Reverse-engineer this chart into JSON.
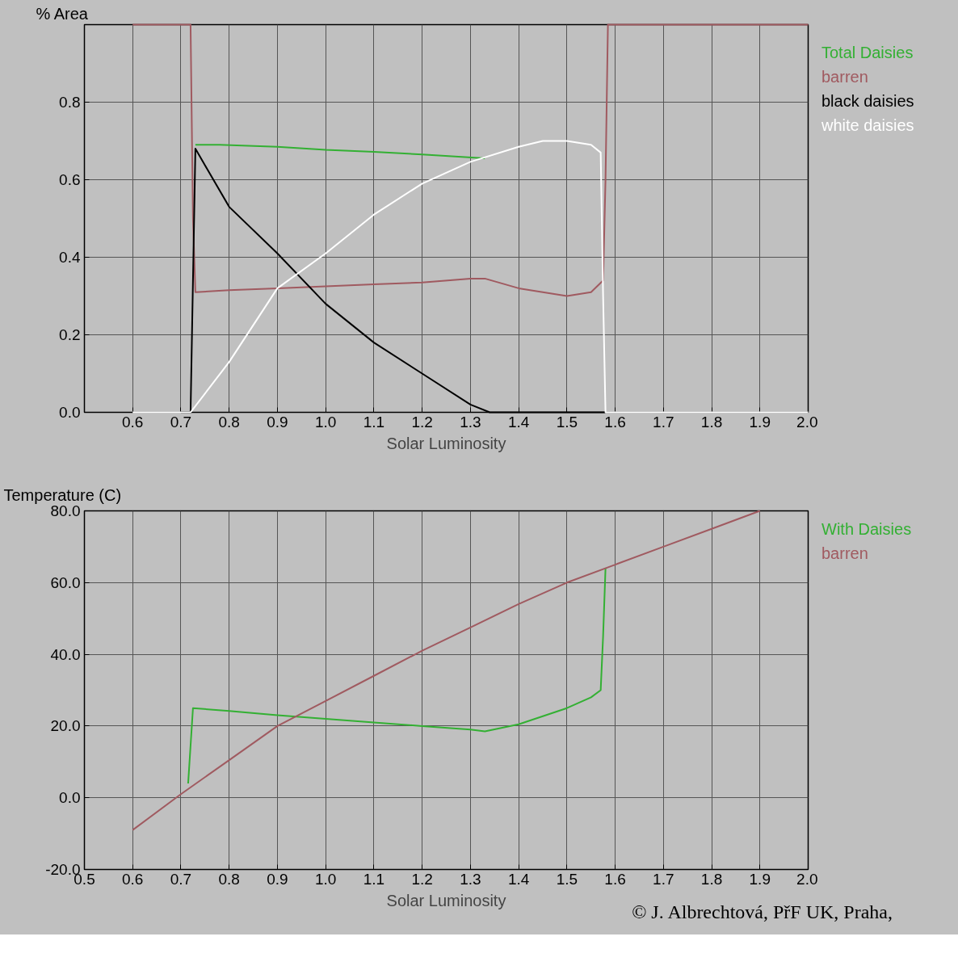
{
  "chart_data": [
    {
      "type": "line",
      "ylabel": "% Area",
      "xlabel": "Solar Luminosity",
      "xlim": [
        0.5,
        2.0
      ],
      "ylim": [
        0,
        1.0
      ],
      "xticks": [
        {
          "value": 0.6,
          "label": "0.6"
        },
        {
          "value": 0.7,
          "label": "0.7"
        },
        {
          "value": 0.8,
          "label": "0.8"
        },
        {
          "value": 0.9,
          "label": "0.9"
        },
        {
          "value": 1.0,
          "label": "1.0"
        },
        {
          "value": 1.1,
          "label": "1.1"
        },
        {
          "value": 1.2,
          "label": "1.2"
        },
        {
          "value": 1.3,
          "label": "1.3"
        },
        {
          "value": 1.4,
          "label": "1.4"
        },
        {
          "value": 1.5,
          "label": "1.5"
        },
        {
          "value": 1.6,
          "label": "1.6"
        },
        {
          "value": 1.7,
          "label": "1.7"
        },
        {
          "value": 1.8,
          "label": "1.8"
        },
        {
          "value": 1.9,
          "label": "1.9"
        },
        {
          "value": 2.0,
          "label": "2.0"
        }
      ],
      "yticks": [
        {
          "value": 0,
          "label": "0.0"
        },
        {
          "value": 0.2,
          "label": "0.2"
        },
        {
          "value": 0.4,
          "label": "0.4"
        },
        {
          "value": 0.6,
          "label": "0.6"
        },
        {
          "value": 0.8,
          "label": "0.8"
        },
        {
          "value": 1.0,
          "label": null
        }
      ],
      "grid": true,
      "marker": "none",
      "line_style": "solid",
      "series": [
        {
          "name": "Total Daisies",
          "color": "#33b033",
          "x": [
            0.73,
            0.78,
            0.9,
            1.0,
            1.1,
            1.2,
            1.33
          ],
          "values": [
            0.69,
            0.69,
            0.685,
            0.677,
            0.672,
            0.665,
            0.655
          ]
        },
        {
          "name": "barren",
          "color": "#a05a60",
          "x": [
            0.6,
            0.72,
            0.725,
            0.73,
            0.8,
            0.9,
            1.0,
            1.1,
            1.2,
            1.3,
            1.33,
            1.4,
            1.5,
            1.55,
            1.575,
            1.58,
            1.585,
            2.0
          ],
          "values": [
            1.0,
            1.0,
            0.5,
            0.31,
            0.315,
            0.32,
            0.325,
            0.33,
            0.335,
            0.345,
            0.345,
            0.32,
            0.3,
            0.31,
            0.34,
            0.6,
            1.0,
            1.0
          ]
        },
        {
          "name": "black daisies",
          "color": "#000000",
          "x": [
            0.7,
            0.72,
            0.73,
            0.8,
            0.9,
            1.0,
            1.1,
            1.2,
            1.3,
            1.34,
            1.58
          ],
          "values": [
            0,
            0,
            0.68,
            0.53,
            0.41,
            0.28,
            0.18,
            0.1,
            0.02,
            0,
            0
          ]
        },
        {
          "name": "white daisies",
          "color": "#ffffff",
          "x": [
            0.6,
            0.72,
            0.8,
            0.9,
            1.0,
            1.1,
            1.2,
            1.3,
            1.4,
            1.45,
            1.5,
            1.55,
            1.57,
            1.575,
            1.58,
            2.0
          ],
          "values": [
            0,
            0,
            0.13,
            0.32,
            0.41,
            0.51,
            0.59,
            0.646,
            0.685,
            0.7,
            0.7,
            0.69,
            0.67,
            0.3,
            0,
            0
          ]
        }
      ]
    },
    {
      "type": "line",
      "ylabel": "Temperature (C)",
      "xlabel": "Solar Luminosity",
      "xlim": [
        0.5,
        2.0
      ],
      "ylim": [
        -20,
        80
      ],
      "xticks": [
        {
          "value": 0.5,
          "label": "0.5"
        },
        {
          "value": 0.6,
          "label": "0.6"
        },
        {
          "value": 0.7,
          "label": "0.7"
        },
        {
          "value": 0.8,
          "label": "0.8"
        },
        {
          "value": 0.9,
          "label": "0.9"
        },
        {
          "value": 1.0,
          "label": "1.0"
        },
        {
          "value": 1.1,
          "label": "1.1"
        },
        {
          "value": 1.2,
          "label": "1.2"
        },
        {
          "value": 1.3,
          "label": "1.3"
        },
        {
          "value": 1.4,
          "label": "1.4"
        },
        {
          "value": 1.5,
          "label": "1.5"
        },
        {
          "value": 1.6,
          "label": "1.6"
        },
        {
          "value": 1.7,
          "label": "1.7"
        },
        {
          "value": 1.8,
          "label": "1.8"
        },
        {
          "value": 1.9,
          "label": "1.9"
        },
        {
          "value": 2.0,
          "label": "2.0"
        }
      ],
      "yticks": [
        {
          "value": -20,
          "label": "-20.0"
        },
        {
          "value": 0,
          "label": "0.0"
        },
        {
          "value": 20,
          "label": "20.0"
        },
        {
          "value": 40,
          "label": "40.0"
        },
        {
          "value": 60,
          "label": "60.0"
        },
        {
          "value": 80,
          "label": "80.0"
        }
      ],
      "grid": true,
      "marker": "none",
      "line_style": "solid",
      "annotations": [
        "© J. Albrechtová, PřF UK, Praha,"
      ],
      "series": [
        {
          "name": "With Daisies",
          "color": "#33b033",
          "x": [
            0.715,
            0.725,
            0.8,
            0.9,
            1.0,
            1.1,
            1.2,
            1.3,
            1.33,
            1.4,
            1.5,
            1.55,
            1.57,
            1.575,
            1.58
          ],
          "values": [
            4,
            25,
            24.2,
            23,
            22,
            21,
            20,
            19,
            18.5,
            20.5,
            25,
            28,
            30,
            45,
            64
          ]
        },
        {
          "name": "barren",
          "color": "#a05a60",
          "x": [
            0.6,
            0.7,
            0.8,
            0.9,
            1.0,
            1.1,
            1.2,
            1.3,
            1.4,
            1.5,
            1.6,
            1.7,
            1.8,
            1.9
          ],
          "values": [
            -9,
            1,
            10.5,
            20,
            27,
            34,
            41,
            47.5,
            54,
            60,
            65,
            70,
            75,
            80
          ]
        }
      ]
    }
  ]
}
